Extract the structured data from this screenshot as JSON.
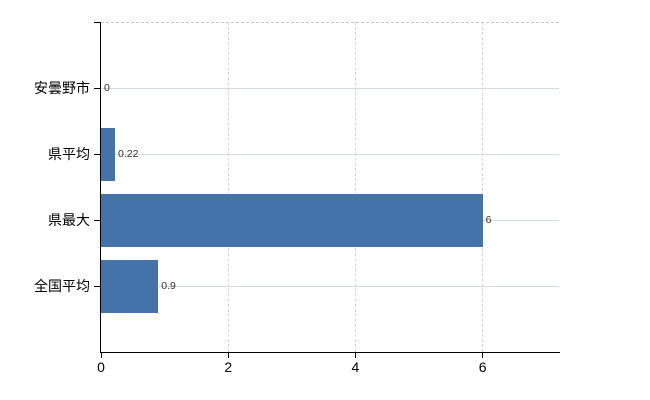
{
  "chart_data": {
    "type": "bar",
    "orientation": "horizontal",
    "title": "",
    "categories": [
      "安曇野市",
      "県平均",
      "県最大",
      "全国平均"
    ],
    "values": [
      0,
      0.22,
      6,
      0.9
    ],
    "value_labels": [
      "0",
      "0.22",
      "6",
      "0.9"
    ],
    "x_ticks": [
      "0",
      "2",
      "4",
      "6"
    ],
    "x_tick_values": [
      0,
      2,
      4,
      6
    ],
    "xlim": [
      0,
      7.2
    ],
    "grid": true,
    "legend": false,
    "colors": {
      "bar": "#4572a8",
      "axis": "#000000",
      "h_gridline": "#d3dcd3",
      "v_gridline": "#d8d2d8",
      "plot_top_border": "#c9c9c9",
      "value_label": "#333333",
      "tick_label": "#000000",
      "background": "#ffffff"
    }
  }
}
